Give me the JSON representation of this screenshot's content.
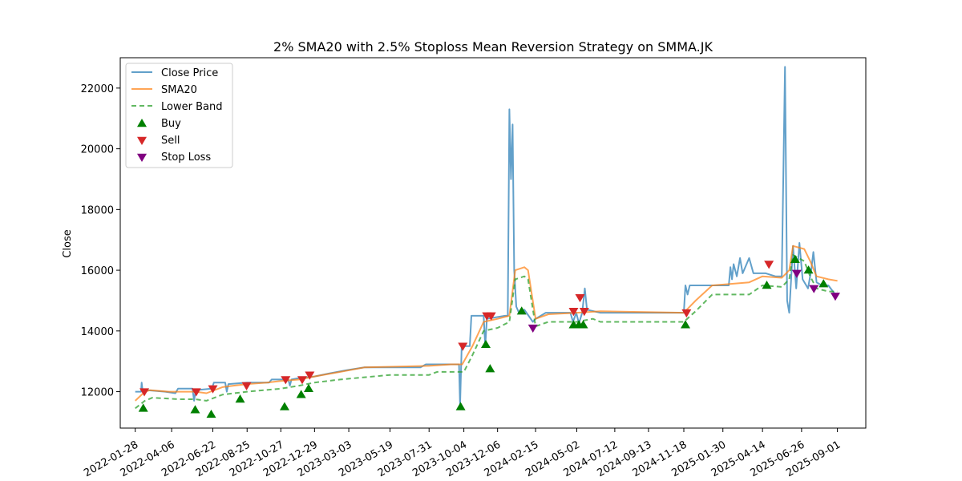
{
  "chart_data": {
    "type": "line",
    "title": "2% SMA20 with 2.5% Stoploss Mean Reversion Strategy on SMMA.JK",
    "xlabel": "",
    "ylabel": "Close",
    "xlim": [
      "2021-12-31",
      "2025-10-24"
    ],
    "ylim": [
      10800,
      23000
    ],
    "x_ticks": [
      "2022-01-28",
      "2022-04-06",
      "2022-06-22",
      "2022-08-25",
      "2022-10-27",
      "2022-12-29",
      "2023-03-03",
      "2023-05-19",
      "2023-07-31",
      "2023-10-04",
      "2023-12-06",
      "2024-02-15",
      "2024-05-02",
      "2024-07-12",
      "2024-09-13",
      "2024-11-18",
      "2025-01-30",
      "2025-04-14",
      "2025-06-26",
      "2025-09-01"
    ],
    "y_ticks": [
      12000,
      14000,
      16000,
      18000,
      20000,
      22000
    ],
    "legend_position": "top-left",
    "grid": false,
    "legend": [
      "Close Price",
      "SMA20",
      "Lower Band",
      "Buy",
      "Sell",
      "Stop Loss"
    ],
    "colors": {
      "close": "#1f77b4",
      "sma": "#ff7f0e",
      "lower": "#2ca02c",
      "buy": "#008000",
      "sell": "#d62728",
      "stop": "#800080"
    },
    "series": [
      {
        "name": "Close Price",
        "points": [
          [
            "2022-01-28",
            12000
          ],
          [
            "2022-02-08",
            12000
          ],
          [
            "2022-02-09",
            12300
          ],
          [
            "2022-02-11",
            12000
          ],
          [
            "2022-02-20",
            12050
          ],
          [
            "2022-03-25",
            12000
          ],
          [
            "2022-04-13",
            11950
          ],
          [
            "2022-04-18",
            12100
          ],
          [
            "2022-05-15",
            12100
          ],
          [
            "2022-05-18",
            11700
          ],
          [
            "2022-05-21",
            12050
          ],
          [
            "2022-06-20",
            12100
          ],
          [
            "2022-06-24",
            12300
          ],
          [
            "2022-07-15",
            12300
          ],
          [
            "2022-07-18",
            12000
          ],
          [
            "2022-07-21",
            12250
          ],
          [
            "2022-08-25",
            12300
          ],
          [
            "2022-09-20",
            12300
          ],
          [
            "2022-10-05",
            12300
          ],
          [
            "2022-10-10",
            12400
          ],
          [
            "2022-11-10",
            12400
          ],
          [
            "2022-11-13",
            12200
          ],
          [
            "2022-11-16",
            12400
          ],
          [
            "2022-12-01",
            12450
          ],
          [
            "2022-12-29",
            12500
          ],
          [
            "2023-01-25",
            12600
          ],
          [
            "2023-02-25",
            12700
          ],
          [
            "2023-04-01",
            12800
          ],
          [
            "2023-07-15",
            12800
          ],
          [
            "2023-07-25",
            12900
          ],
          [
            "2023-09-25",
            12900
          ],
          [
            "2023-09-27",
            11550
          ],
          [
            "2023-09-30",
            13500
          ],
          [
            "2023-10-15",
            13500
          ],
          [
            "2023-10-18",
            14500
          ],
          [
            "2023-11-10",
            14500
          ],
          [
            "2023-11-13",
            13500
          ],
          [
            "2023-11-16",
            14400
          ],
          [
            "2023-12-20",
            14500
          ],
          [
            "2023-12-25",
            14500
          ],
          [
            "2023-12-28",
            21300
          ],
          [
            "2023-12-31",
            19000
          ],
          [
            "2024-01-03",
            20800
          ],
          [
            "2024-01-06",
            16000
          ],
          [
            "2024-01-10",
            14800
          ],
          [
            "2024-01-15",
            14600
          ],
          [
            "2024-01-25",
            14700
          ],
          [
            "2024-02-10",
            14300
          ],
          [
            "2024-02-15",
            14400
          ],
          [
            "2024-03-05",
            14600
          ],
          [
            "2024-04-20",
            14600
          ],
          [
            "2024-04-25",
            14300
          ],
          [
            "2024-05-01",
            14600
          ],
          [
            "2024-05-06",
            14250
          ],
          [
            "2024-05-12",
            14600
          ],
          [
            "2024-05-17",
            15400
          ],
          [
            "2024-05-21",
            14700
          ],
          [
            "2024-06-15",
            14600
          ],
          [
            "2024-11-18",
            14600
          ],
          [
            "2024-11-21",
            15500
          ],
          [
            "2024-11-25",
            15200
          ],
          [
            "2024-11-29",
            15500
          ],
          [
            "2024-12-05",
            15500
          ],
          [
            "2025-01-30",
            15500
          ],
          [
            "2025-02-10",
            15500
          ],
          [
            "2025-02-13",
            16100
          ],
          [
            "2025-02-16",
            15700
          ],
          [
            "2025-02-19",
            16200
          ],
          [
            "2025-02-25",
            15800
          ],
          [
            "2025-03-03",
            16400
          ],
          [
            "2025-03-08",
            15900
          ],
          [
            "2025-03-20",
            16400
          ],
          [
            "2025-03-28",
            15900
          ],
          [
            "2025-04-20",
            15900
          ],
          [
            "2025-05-08",
            15800
          ],
          [
            "2025-05-20",
            15800
          ],
          [
            "2025-05-26",
            22700
          ],
          [
            "2025-05-30",
            15000
          ],
          [
            "2025-06-03",
            14600
          ],
          [
            "2025-06-10",
            16800
          ],
          [
            "2025-06-16",
            15400
          ],
          [
            "2025-06-22",
            16900
          ],
          [
            "2025-06-28",
            15700
          ],
          [
            "2025-07-08",
            15400
          ],
          [
            "2025-07-14",
            16000
          ],
          [
            "2025-07-18",
            16600
          ],
          [
            "2025-07-24",
            15600
          ],
          [
            "2025-08-03",
            15500
          ],
          [
            "2025-08-15",
            15500
          ],
          [
            "2025-08-28",
            15200
          ]
        ]
      },
      {
        "name": "SMA20",
        "points": [
          [
            "2022-01-28",
            11700
          ],
          [
            "2022-02-15",
            12000
          ],
          [
            "2022-02-25",
            12050
          ],
          [
            "2022-04-01",
            12000
          ],
          [
            "2022-04-20",
            12000
          ],
          [
            "2022-05-20",
            12000
          ],
          [
            "2022-06-10",
            11950
          ],
          [
            "2022-07-10",
            12150
          ],
          [
            "2022-08-01",
            12200
          ],
          [
            "2022-08-25",
            12250
          ],
          [
            "2022-10-01",
            12300
          ],
          [
            "2022-10-27",
            12350
          ],
          [
            "2022-12-01",
            12400
          ],
          [
            "2022-12-29",
            12500
          ],
          [
            "2023-02-15",
            12650
          ],
          [
            "2023-04-01",
            12800
          ],
          [
            "2023-07-31",
            12850
          ],
          [
            "2023-09-10",
            12900
          ],
          [
            "2023-10-01",
            12900
          ],
          [
            "2023-10-20",
            13500
          ],
          [
            "2023-11-10",
            14300
          ],
          [
            "2023-12-06",
            14400
          ],
          [
            "2023-12-28",
            14500
          ],
          [
            "2024-01-08",
            16000
          ],
          [
            "2024-01-25",
            16100
          ],
          [
            "2024-02-01",
            16000
          ],
          [
            "2024-02-15",
            14400
          ],
          [
            "2024-03-10",
            14550
          ],
          [
            "2024-05-02",
            14600
          ],
          [
            "2024-06-15",
            14650
          ],
          [
            "2024-11-18",
            14600
          ],
          [
            "2024-12-10",
            15000
          ],
          [
            "2025-01-10",
            15500
          ],
          [
            "2025-03-20",
            15600
          ],
          [
            "2025-04-14",
            15800
          ],
          [
            "2025-05-20",
            15750
          ],
          [
            "2025-06-03",
            16000
          ],
          [
            "2025-06-10",
            16800
          ],
          [
            "2025-07-01",
            16700
          ],
          [
            "2025-07-12",
            16300
          ],
          [
            "2025-07-24",
            15800
          ],
          [
            "2025-08-15",
            15700
          ],
          [
            "2025-09-01",
            15650
          ]
        ]
      },
      {
        "name": "Lower Band",
        "points": [
          [
            "2022-01-28",
            11450
          ],
          [
            "2022-02-15",
            11700
          ],
          [
            "2022-03-01",
            11800
          ],
          [
            "2022-04-20",
            11750
          ],
          [
            "2022-05-20",
            11750
          ],
          [
            "2022-06-10",
            11700
          ],
          [
            "2022-07-10",
            11900
          ],
          [
            "2022-08-01",
            11950
          ],
          [
            "2022-08-25",
            12000
          ],
          [
            "2022-10-27",
            12100
          ],
          [
            "2022-12-01",
            12200
          ],
          [
            "2022-12-29",
            12300
          ],
          [
            "2023-02-15",
            12400
          ],
          [
            "2023-05-19",
            12550
          ],
          [
            "2023-07-31",
            12550
          ],
          [
            "2023-08-15",
            12650
          ],
          [
            "2023-10-04",
            12650
          ],
          [
            "2023-10-20",
            13200
          ],
          [
            "2023-11-10",
            14000
          ],
          [
            "2023-12-06",
            14100
          ],
          [
            "2023-12-28",
            14300
          ],
          [
            "2024-01-08",
            15700
          ],
          [
            "2024-01-25",
            15800
          ],
          [
            "2024-02-01",
            15700
          ],
          [
            "2024-02-15",
            14150
          ],
          [
            "2024-03-10",
            14300
          ],
          [
            "2024-05-02",
            14300
          ],
          [
            "2024-06-01",
            14400
          ],
          [
            "2024-06-15",
            14300
          ],
          [
            "2024-11-18",
            14300
          ],
          [
            "2024-12-10",
            14650
          ],
          [
            "2025-01-10",
            15200
          ],
          [
            "2025-03-20",
            15200
          ],
          [
            "2025-04-14",
            15500
          ],
          [
            "2025-05-20",
            15450
          ],
          [
            "2025-06-03",
            15700
          ],
          [
            "2025-06-10",
            16500
          ],
          [
            "2025-07-01",
            16300
          ],
          [
            "2025-07-12",
            15800
          ],
          [
            "2025-07-24",
            15400
          ],
          [
            "2025-08-15",
            15300
          ],
          [
            "2025-09-01",
            15300
          ]
        ]
      },
      {
        "name": "Buy",
        "points": [
          [
            "2022-02-12",
            11450
          ],
          [
            "2022-05-20",
            11400
          ],
          [
            "2022-06-19",
            11250
          ],
          [
            "2022-08-12",
            11750
          ],
          [
            "2022-11-03",
            11500
          ],
          [
            "2022-12-04",
            11900
          ],
          [
            "2022-12-18",
            12100
          ],
          [
            "2023-09-28",
            11500
          ],
          [
            "2023-11-14",
            13550
          ],
          [
            "2023-11-22",
            12750
          ],
          [
            "2024-01-20",
            14650
          ],
          [
            "2024-04-26",
            14200
          ],
          [
            "2024-05-06",
            14200
          ],
          [
            "2024-05-14",
            14200
          ],
          [
            "2024-11-21",
            14200
          ],
          [
            "2025-04-22",
            15500
          ],
          [
            "2025-06-14",
            16350
          ],
          [
            "2025-07-09",
            16000
          ],
          [
            "2025-08-06",
            15550
          ]
        ]
      },
      {
        "name": "Sell",
        "points": [
          [
            "2022-02-14",
            12000
          ],
          [
            "2022-05-22",
            12000
          ],
          [
            "2022-06-22",
            12100
          ],
          [
            "2022-08-24",
            12200
          ],
          [
            "2022-11-05",
            12400
          ],
          [
            "2022-12-06",
            12400
          ],
          [
            "2022-12-20",
            12550
          ],
          [
            "2023-10-02",
            13500
          ],
          [
            "2023-11-16",
            14500
          ],
          [
            "2023-11-24",
            14500
          ],
          [
            "2024-04-26",
            14650
          ],
          [
            "2024-05-08",
            15100
          ],
          [
            "2024-05-16",
            14650
          ],
          [
            "2024-11-23",
            14600
          ],
          [
            "2025-04-26",
            16200
          ]
        ]
      },
      {
        "name": "Stop Loss",
        "points": [
          [
            "2024-02-10",
            14100
          ],
          [
            "2025-06-17",
            15900
          ],
          [
            "2025-07-19",
            15400
          ],
          [
            "2025-08-28",
            15150
          ]
        ]
      }
    ]
  }
}
